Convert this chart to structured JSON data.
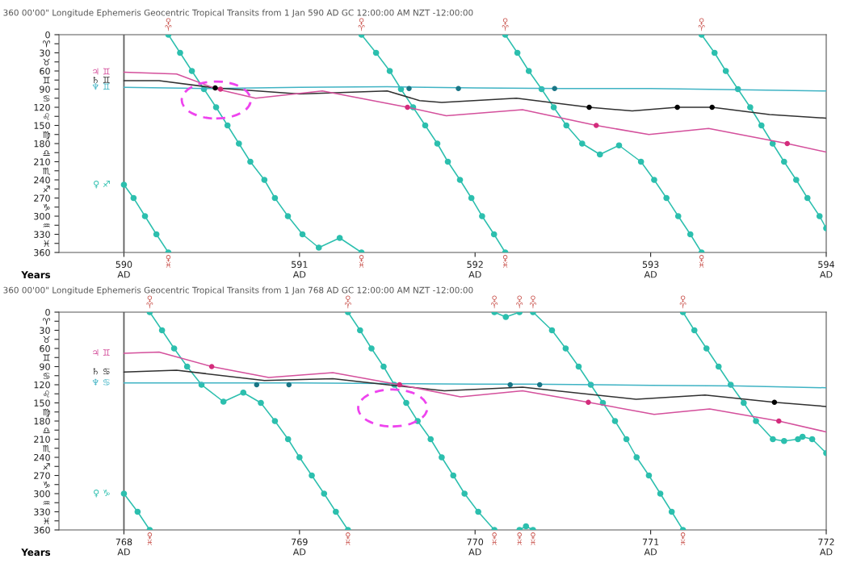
{
  "chart_data": [
    {
      "type": "line",
      "title": "360 00'00\" Longitude Ephemeris Geocentric Tropical Transits from 1 Jan 590 AD GC 12:00:00 AM NZT -12:00:00",
      "xlabel": "Years",
      "xlim": [
        589.63,
        594
      ],
      "xticks": [
        {
          "value": 590,
          "label": "590\nAD"
        },
        {
          "value": 591,
          "label": "591\nAD"
        },
        {
          "value": 592,
          "label": "592\nAD"
        },
        {
          "value": 593,
          "label": "593\nAD"
        },
        {
          "value": 594,
          "label": "594\nAD"
        }
      ],
      "ylim": [
        360,
        0
      ],
      "yticks": [
        0,
        {
          "value": 15,
          "label": "♈"
        },
        30,
        {
          "value": 45,
          "label": "♉"
        },
        60,
        {
          "value": 75,
          "label": "♊"
        },
        90,
        {
          "value": 105,
          "label": "♋"
        },
        120,
        {
          "value": 135,
          "label": "♌"
        },
        150,
        {
          "value": 165,
          "label": "♍"
        },
        180,
        {
          "value": 195,
          "label": "♎"
        },
        210,
        {
          "value": 225,
          "label": "♏"
        },
        240,
        {
          "value": 255,
          "label": "♐"
        },
        270,
        {
          "value": 285,
          "label": "♑"
        },
        300,
        {
          "value": 315,
          "label": "♒"
        },
        330,
        {
          "value": 345,
          "label": "♓"
        },
        360
      ],
      "grid": false,
      "legend": false,
      "ref_lines": [
        {
          "axis": "x",
          "value": 590,
          "color": "#606060"
        }
      ],
      "series": [
        {
          "name": "♀ ♐",
          "color": "#2cbfae",
          "marker": "circle",
          "x": [
            590,
            590.055,
            590.12,
            590.185,
            590.253
          ],
          "values": [
            248,
            270,
            300,
            330,
            360
          ]
        },
        {
          "color": "#2cbfae",
          "marker": "circle",
          "x": [
            590.253,
            590.32,
            590.387,
            590.456,
            590.525,
            590.59,
            590.655,
            590.72,
            590.8,
            590.86,
            590.934,
            591.017,
            591.11,
            591.229,
            591.353
          ],
          "values": [
            0,
            30,
            60,
            90,
            120,
            150,
            180,
            210,
            240,
            270,
            300,
            330,
            352,
            336,
            360
          ]
        },
        {
          "color": "#2cbfae",
          "marker": "circle",
          "x": [
            591.353,
            591.436,
            591.514,
            591.578,
            591.647,
            591.716,
            591.785,
            591.845,
            591.914,
            591.979,
            592.04,
            592.108,
            592.172
          ],
          "values": [
            0,
            30,
            60,
            90,
            120,
            150,
            180,
            210,
            240,
            270,
            300,
            330,
            360
          ]
        },
        {
          "color": "#2cbfae",
          "marker": "circle",
          "x": [
            592.172,
            592.241,
            592.306,
            592.379,
            592.448,
            592.52,
            592.61,
            592.711,
            592.82,
            592.945,
            593.02,
            593.09,
            593.157,
            593.226,
            593.29
          ],
          "values": [
            0,
            30,
            60,
            90,
            120,
            150,
            180,
            198,
            183,
            210,
            240,
            270,
            300,
            330,
            360
          ]
        },
        {
          "color": "#2cbfae",
          "marker": "circle",
          "x": [
            593.29,
            593.364,
            593.428,
            593.497,
            593.567,
            593.631,
            593.695,
            593.76,
            593.829,
            593.893,
            593.962,
            594
          ],
          "values": [
            0,
            30,
            60,
            90,
            120,
            150,
            180,
            210,
            240,
            270,
            300,
            320
          ]
        },
        {
          "name": "♆ ♊",
          "color": "#3fb3c4",
          "marker": "none",
          "x": [
            590,
            590.5,
            591,
            591.5,
            592,
            592.5,
            593,
            593.5,
            594
          ],
          "values": [
            87,
            89,
            87,
            86,
            88,
            89,
            89,
            91,
            93
          ]
        },
        {
          "name": "♄ ♊",
          "color": "#303030",
          "marker": "none",
          "x": [
            590,
            590.2,
            590.52,
            591,
            591.5,
            591.684,
            591.81,
            592.236,
            592.65,
            592.895,
            593.152,
            593.35,
            593.677,
            594
          ],
          "values": [
            76,
            76,
            88,
            98,
            93,
            109,
            112,
            105,
            120,
            126,
            120,
            120,
            132,
            138
          ]
        },
        {
          "name": "♃ ♊",
          "color": "#d4509c",
          "marker": "none",
          "x": [
            590,
            590.3,
            590.53,
            590.75,
            591.13,
            591.615,
            591.836,
            592.27,
            592.69,
            592.99,
            593.33,
            593.778,
            594
          ],
          "values": [
            62,
            65,
            90,
            105,
            93,
            120,
            134,
            124,
            150,
            165,
            155,
            180,
            194
          ]
        },
        {
          "type": "scatter",
          "color": "#1a7686",
          "x": [
            591.624,
            591.905,
            592.453
          ],
          "values": [
            89,
            89,
            89
          ]
        },
        {
          "type": "scatter",
          "color": "#000000",
          "x": [
            590.52,
            592.65,
            593.152,
            593.35
          ],
          "values": [
            88,
            120,
            120,
            120
          ]
        },
        {
          "type": "scatter",
          "color": "#d42c7c",
          "x": [
            590.55,
            591.615,
            592.69,
            593.778
          ],
          "values": [
            90,
            120,
            150,
            180
          ]
        }
      ],
      "annotations": [
        {
          "text": "♀\n♈",
          "x": 590.253,
          "y": 0
        },
        {
          "text": "♀\n♈",
          "x": 591.353,
          "y": 0
        },
        {
          "text": "♀\n♈",
          "x": 592.172,
          "y": 0
        },
        {
          "text": "♀\n♈",
          "x": 593.29,
          "y": 0
        },
        {
          "text": "♀\n♓",
          "x": 590.253,
          "y": 360
        },
        {
          "text": "♀\n♓",
          "x": 591.353,
          "y": 360
        },
        {
          "text": "♀\n♓",
          "x": 592.172,
          "y": 360
        },
        {
          "text": "♀\n♓",
          "x": 593.29,
          "y": 360
        }
      ]
    },
    {
      "type": "line",
      "title": "360 00'00\" Longitude Ephemeris Geocentric Tropical Transits from 1 Jan 768 AD GC 12:00:00 AM NZT -12:00:00",
      "xlabel": "Years",
      "xlim": [
        767.63,
        772
      ],
      "xticks": [
        {
          "value": 768,
          "label": "768\nAD"
        },
        {
          "value": 769,
          "label": "769\nAD"
        },
        {
          "value": 770,
          "label": "770\nAD"
        },
        {
          "value": 771,
          "label": "771\nAD"
        },
        {
          "value": 772,
          "label": "772\nAD"
        }
      ],
      "ylim": [
        360,
        0
      ],
      "yticks": [
        0,
        {
          "value": 15,
          "label": "♈"
        },
        30,
        {
          "value": 45,
          "label": "♉"
        },
        60,
        {
          "value": 75,
          "label": "♊"
        },
        90,
        {
          "value": 105,
          "label": "♋"
        },
        120,
        {
          "value": 135,
          "label": "♌"
        },
        150,
        {
          "value": 165,
          "label": "♍"
        },
        180,
        {
          "value": 195,
          "label": "♎"
        },
        210,
        {
          "value": 225,
          "label": "♏"
        },
        240,
        {
          "value": 255,
          "label": "♐"
        },
        270,
        {
          "value": 285,
          "label": "♑"
        },
        300,
        {
          "value": 315,
          "label": "♒"
        },
        330,
        {
          "value": 345,
          "label": "♓"
        },
        360
      ],
      "grid": false,
      "legend": false,
      "ref_lines": [
        {
          "axis": "x",
          "value": 768,
          "color": "#606060"
        }
      ],
      "series": [
        {
          "name": "♀ ♑",
          "color": "#2cbfae",
          "marker": "circle",
          "x": [
            768,
            768.078,
            768.147
          ],
          "values": [
            300,
            330,
            360
          ]
        },
        {
          "color": "#2cbfae",
          "marker": "circle",
          "x": [
            768.147,
            768.217,
            768.286,
            768.36,
            768.442,
            768.567,
            768.68,
            768.78,
            768.86,
            768.935,
            769.0,
            769.07,
            769.14,
            769.207,
            769.276
          ],
          "values": [
            0,
            30,
            60,
            90,
            120,
            148,
            133,
            150,
            180,
            210,
            240,
            270,
            300,
            330,
            360
          ]
        },
        {
          "color": "#2cbfae",
          "marker": "circle",
          "x": [
            769.276,
            769.345,
            769.41,
            769.479,
            769.54,
            769.608,
            769.673,
            769.747,
            769.81,
            769.876,
            769.94,
            770.018,
            770.11
          ],
          "values": [
            0,
            30,
            60,
            90,
            120,
            150,
            180,
            210,
            240,
            270,
            300,
            330,
            360
          ]
        },
        {
          "color": "#2cbfae",
          "marker": "circle",
          "x": [
            770.11,
            770.175,
            770.253
          ],
          "values": [
            0,
            8,
            0
          ]
        },
        {
          "color": "#2cbfae",
          "marker": "circle",
          "x": [
            770.253,
            770.29,
            770.33
          ],
          "values": [
            360,
            354,
            360
          ]
        },
        {
          "color": "#2cbfae",
          "marker": "circle",
          "x": [
            770.33,
            770.438,
            770.516,
            770.59,
            770.659,
            770.728,
            770.797,
            770.862,
            770.92,
            770.99,
            771.055,
            771.12,
            771.184
          ],
          "values": [
            0,
            30,
            60,
            90,
            120,
            150,
            180,
            210,
            240,
            270,
            300,
            330,
            360
          ]
        },
        {
          "color": "#2cbfae",
          "marker": "circle",
          "x": [
            771.184,
            771.249,
            771.318,
            771.387,
            771.456,
            771.53,
            771.6,
            771.696,
            771.76,
            771.839,
            771.865,
            771.92,
            772
          ],
          "values": [
            0,
            30,
            60,
            90,
            120,
            150,
            180,
            210,
            213,
            210,
            206,
            210,
            233
          ]
        },
        {
          "name": "♆ ♋",
          "color": "#3fb3c4",
          "marker": "none",
          "x": [
            768,
            768.5,
            769,
            769.5,
            770,
            770.3,
            770.7,
            771,
            771.5,
            772
          ],
          "values": [
            117,
            117,
            117,
            118,
            119,
            119,
            120,
            121,
            122,
            125
          ]
        },
        {
          "name": "♄ ♋",
          "color": "#303030",
          "marker": "none",
          "x": [
            768,
            768.3,
            768.8,
            769.19,
            769.5,
            769.825,
            770.27,
            770.917,
            771.31,
            771.705,
            772
          ],
          "values": [
            99,
            96,
            113,
            110,
            120,
            130,
            124,
            144,
            137,
            149,
            156
          ]
        },
        {
          "name": "♃ ♊",
          "color": "#d4509c",
          "marker": "none",
          "x": [
            768,
            768.2,
            768.5,
            768.825,
            769.19,
            769.57,
            769.917,
            770.27,
            770.645,
            771.02,
            771.336,
            771.73,
            772
          ],
          "values": [
            68,
            66,
            90,
            108,
            100,
            120,
            140,
            130,
            149,
            169,
            160,
            180,
            198
          ]
        },
        {
          "type": "scatter",
          "color": "#1a7686",
          "x": [
            768.756,
            768.94,
            770.2,
            770.368
          ],
          "values": [
            120,
            120,
            120,
            120
          ]
        },
        {
          "type": "scatter",
          "color": "#000000",
          "x": [
            771.705
          ],
          "values": [
            149
          ]
        },
        {
          "type": "scatter",
          "color": "#d42c7c",
          "x": [
            768.5,
            769.57,
            770.645,
            771.73
          ],
          "values": [
            90,
            120,
            149,
            180
          ]
        }
      ],
      "annotations": [
        {
          "text": "♀\n♈",
          "x": 768.147,
          "y": 0
        },
        {
          "text": "♀\n♈",
          "x": 769.276,
          "y": 0
        },
        {
          "text": "♀\n♈",
          "x": 770.11,
          "y": 0
        },
        {
          "text": "♀\n♈",
          "x": 770.253,
          "y": 0
        },
        {
          "text": "♀\n♈",
          "x": 770.33,
          "y": 0
        },
        {
          "text": "♀\n♈",
          "x": 771.184,
          "y": 0
        },
        {
          "text": "♀\n♓",
          "x": 768.147,
          "y": 360
        },
        {
          "text": "♀\n♓",
          "x": 769.276,
          "y": 360
        },
        {
          "text": "♀\n♓",
          "x": 770.11,
          "y": 360
        },
        {
          "text": "♀\n♓",
          "x": 770.253,
          "y": 360
        },
        {
          "text": "♀\n♓",
          "x": 770.33,
          "y": 360
        },
        {
          "text": "♀\n♓",
          "x": 771.184,
          "y": 360
        }
      ]
    }
  ]
}
